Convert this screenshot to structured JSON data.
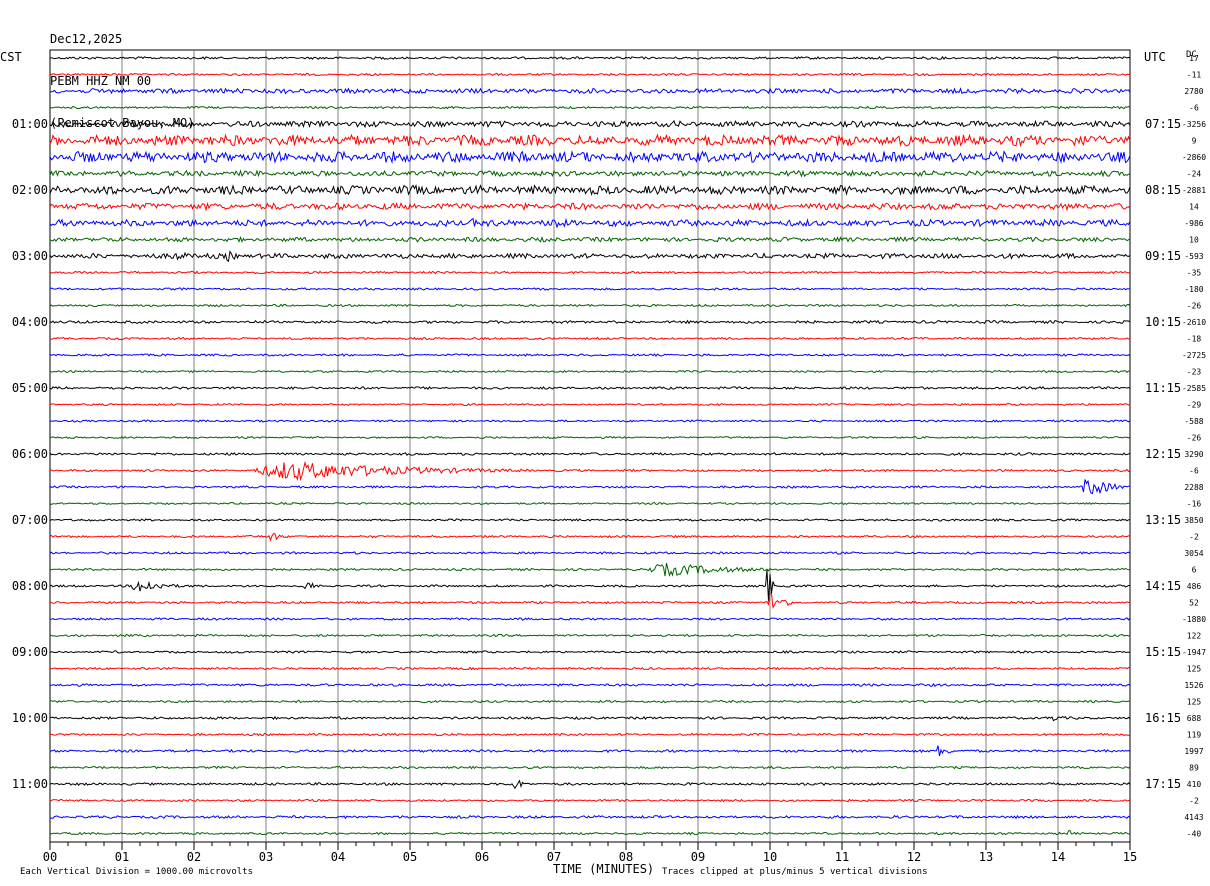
{
  "header": {
    "date": "Dec12,2025",
    "station": "PEBM HHZ NM 00",
    "location": "(Pemiscot Bayou, MO)"
  },
  "left_corner_label": "CST",
  "right_corner_label": "UTC",
  "dc_label": "DC",
  "footer": {
    "scale_note": "Each Vertical Division = 1000.00 microvolts",
    "x_axis_title": "TIME (MINUTES)",
    "clip_note": "Traces clipped at plus/minus 5 vertical divisions"
  },
  "colors": {
    "trace_cycle": [
      "#000000",
      "#ff0000",
      "#0000ff",
      "#006400"
    ],
    "grid": "#808080"
  },
  "chart_data": {
    "type": "line",
    "subtype": "helicorder",
    "x_range_minutes": [
      0,
      15
    ],
    "x_ticks": [
      "00",
      "01",
      "02",
      "03",
      "04",
      "05",
      "06",
      "07",
      "08",
      "09",
      "10",
      "11",
      "12",
      "13",
      "14",
      "15"
    ],
    "rows_per_hour": 4,
    "row_count": 48,
    "cst_labels": [
      "01:00",
      "02:00",
      "03:00",
      "04:00",
      "05:00",
      "06:00",
      "07:00",
      "08:00",
      "09:00",
      "10:00",
      "11:00"
    ],
    "utc_labels": [
      "07:15",
      "08:15",
      "09:15",
      "10:15",
      "11:15",
      "12:15",
      "13:15",
      "14:15",
      "15:15",
      "16:15",
      "17:15"
    ],
    "dc_offsets": [
      "17",
      "-11",
      "2780",
      "-6",
      "-3256",
      "9",
      "-2860",
      "-24",
      "-2881",
      "14",
      "-986",
      "10",
      "-593",
      "-35",
      "-180",
      "-26",
      "-2610",
      "-18",
      "-2725",
      "-23",
      "-2585",
      "-29",
      "-588",
      "-26",
      "3290",
      "-6",
      "2288",
      "-16",
      "3850",
      "-2",
      "3054",
      "6",
      "486",
      "52",
      "-1880",
      "122",
      "-1947",
      "125",
      "1526",
      "125",
      "688",
      "119",
      "1997",
      "89",
      "410",
      "-2",
      "4143",
      "-40"
    ],
    "noise_levels": [
      0.9,
      0.8,
      1.8,
      0.8,
      2.2,
      4.0,
      4.0,
      2.0,
      3.2,
      2.4,
      2.4,
      1.6,
      1.8,
      0.8,
      0.8,
      0.8,
      1.0,
      0.8,
      0.8,
      0.7,
      0.9,
      0.7,
      0.7,
      0.7,
      0.9,
      0.8,
      0.8,
      0.7,
      0.8,
      0.8,
      0.8,
      0.8,
      0.8,
      0.8,
      0.8,
      0.8,
      0.8,
      0.8,
      0.9,
      0.8,
      0.9,
      0.8,
      0.9,
      0.8,
      0.9,
      0.8,
      1.0,
      0.8
    ],
    "events": [
      {
        "row": 5,
        "minute": 2.0,
        "duration": 2.8,
        "amp": 5
      },
      {
        "row": 8,
        "minute": 4.8,
        "duration": 1.0,
        "amp": 6
      },
      {
        "row": 8,
        "minute": 2.3,
        "duration": 0.8,
        "amp": 5
      },
      {
        "row": 10,
        "minute": 6.9,
        "duration": 0.5,
        "amp": 8
      },
      {
        "row": 10,
        "minute": 5.8,
        "duration": 0.5,
        "amp": 5
      },
      {
        "row": 6,
        "minute": 2.9,
        "duration": 0.6,
        "amp": 6
      },
      {
        "row": 6,
        "minute": 10.7,
        "duration": 0.6,
        "amp": 6
      },
      {
        "row": 12,
        "minute": 1.6,
        "duration": 0.8,
        "amp": 5
      },
      {
        "row": 12,
        "minute": 2.4,
        "duration": 0.4,
        "amp": 6
      },
      {
        "row": 25,
        "minute": 2.7,
        "duration": 4.0,
        "amp": 10
      },
      {
        "row": 26,
        "minute": 14.3,
        "duration": 0.7,
        "amp": 11
      },
      {
        "row": 29,
        "minute": 3.0,
        "duration": 0.4,
        "amp": 5
      },
      {
        "row": 31,
        "minute": 8.2,
        "duration": 2.2,
        "amp": 7
      },
      {
        "row": 32,
        "minute": 1.1,
        "duration": 0.8,
        "amp": 8
      },
      {
        "row": 32,
        "minute": 3.5,
        "duration": 0.2,
        "amp": 11
      },
      {
        "row": 32,
        "minute": 9.95,
        "duration": 0.1,
        "amp": 36
      },
      {
        "row": 33,
        "minute": 9.95,
        "duration": 0.4,
        "amp": 13
      },
      {
        "row": 40,
        "minute": 13.8,
        "duration": 0.5,
        "amp": 4
      },
      {
        "row": 42,
        "minute": 12.3,
        "duration": 0.3,
        "amp": 8
      },
      {
        "row": 44,
        "minute": 6.4,
        "duration": 0.3,
        "amp": 7
      },
      {
        "row": 47,
        "minute": 14.1,
        "duration": 0.3,
        "amp": 5
      }
    ]
  }
}
